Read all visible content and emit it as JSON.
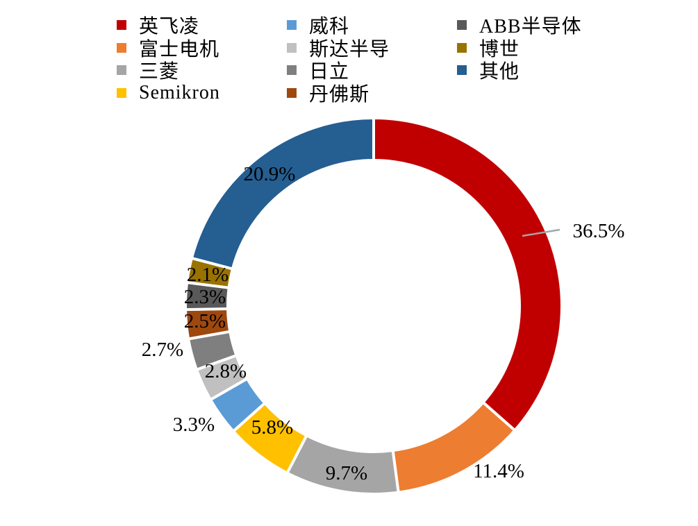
{
  "chart_data": {
    "type": "pie",
    "style": "donut",
    "unit": "%",
    "slices": [
      {
        "name": "英飞凌",
        "value": 36.5,
        "label": "36.5%",
        "color": "#C00000"
      },
      {
        "name": "富士电机",
        "value": 11.4,
        "label": "11.4%",
        "color": "#ED7D31"
      },
      {
        "name": "三菱",
        "value": 9.7,
        "label": "9.7%",
        "color": "#A5A5A5"
      },
      {
        "name": "Semikron",
        "value": 5.8,
        "label": "5.8%",
        "color": "#FFC000"
      },
      {
        "name": "威科",
        "value": 3.3,
        "label": "3.3%",
        "color": "#5B9BD5"
      },
      {
        "name": "斯达半导",
        "value": 2.8,
        "label": "2.8%",
        "color": "#C0C0C0"
      },
      {
        "name": "日立",
        "value": 2.7,
        "label": "2.7%",
        "color": "#7F7F7F"
      },
      {
        "name": "丹佛斯",
        "value": 2.5,
        "label": "2.5%",
        "color": "#9E480E"
      },
      {
        "name": "ABB半导体",
        "value": 2.3,
        "label": "2.3%",
        "color": "#595959"
      },
      {
        "name": "博世",
        "value": 2.1,
        "label": "2.1%",
        "color": "#997300"
      },
      {
        "name": "其他",
        "value": 20.9,
        "label": "20.9%",
        "color": "#255E91"
      }
    ],
    "legend_position": "top"
  }
}
